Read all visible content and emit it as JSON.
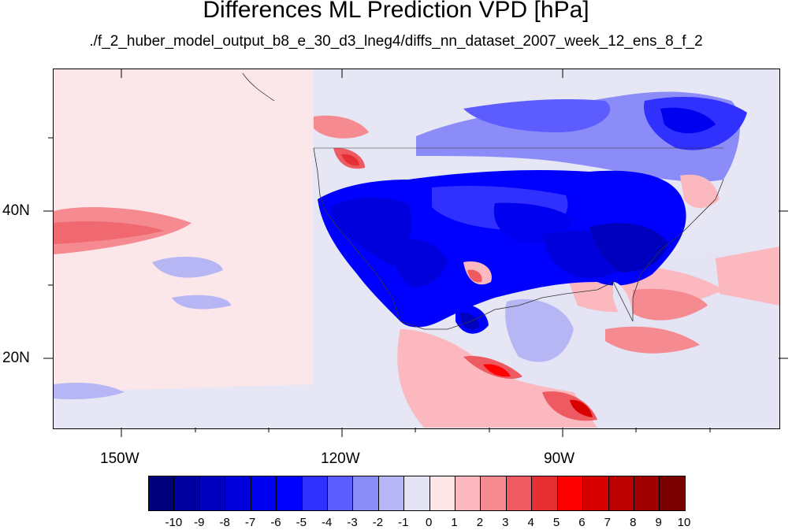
{
  "title": "Differences ML Prediction VPD [hPa]",
  "subtitle": "./f_2_huber_model_output_b8_e_30_d3_lneg4/diffs_nn_dataset_2007_week_12_ens_8_f_2",
  "map": {
    "lon_labels": [
      "150W",
      "120W",
      "90W"
    ],
    "lat_labels": [
      "40N",
      "20N"
    ]
  },
  "colorbar": {
    "labels": [
      "-10",
      "-9",
      "-8",
      "-7",
      "-6",
      "-5",
      "-4",
      "-3",
      "-2",
      "-1",
      "0",
      "1",
      "2",
      "3",
      "4",
      "5",
      "6",
      "7",
      "8",
      "9",
      "10"
    ],
    "colors": [
      "#00007a",
      "#00009e",
      "#0000bf",
      "#0000dc",
      "#0000f0",
      "#0000ff",
      "#3030ff",
      "#5c5cff",
      "#8c8cf8",
      "#b6b6f4",
      "#e4e4f4",
      "#fde6e8",
      "#fbb9bf",
      "#f58a91",
      "#ee5a62",
      "#e62f33",
      "#ff0000",
      "#d90000",
      "#bb0000",
      "#a00000",
      "#7a0000"
    ]
  }
}
